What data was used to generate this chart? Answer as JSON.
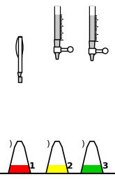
{
  "bg_color": "#ffffff",
  "flask_colors": [
    "#ff0000",
    "#ffff00",
    "#00cc00"
  ],
  "labels": [
    "1",
    "2",
    "3"
  ],
  "tube_fill_color": "#c8c8c8",
  "stopcock_color": "#ffffff",
  "outline_color": "#000000",
  "tick_color": "#000000",
  "fig_width": 1.65,
  "fig_height": 2.57,
  "dpi": 100
}
